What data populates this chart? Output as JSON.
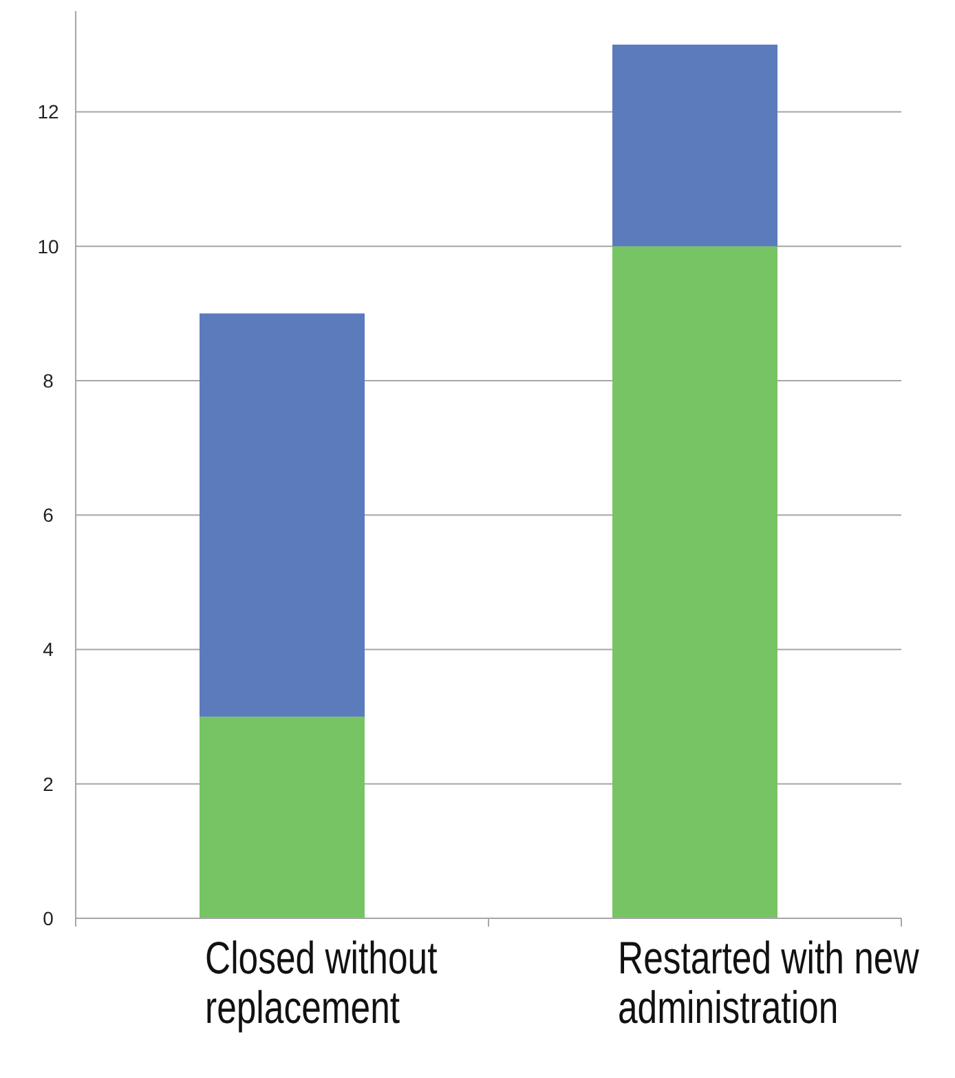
{
  "chart_data": {
    "type": "bar",
    "stacked": true,
    "categories": [
      "Closed without replacement",
      "Restarted with new administration"
    ],
    "series": [
      {
        "color": "#77c465",
        "values": [
          3,
          10
        ]
      },
      {
        "color": "#5b7bbd",
        "values": [
          6,
          3
        ]
      }
    ],
    "ylim": [
      0,
      13.5
    ],
    "yticks": [
      0,
      2,
      4,
      6,
      8,
      10,
      12
    ],
    "grid": "y"
  }
}
